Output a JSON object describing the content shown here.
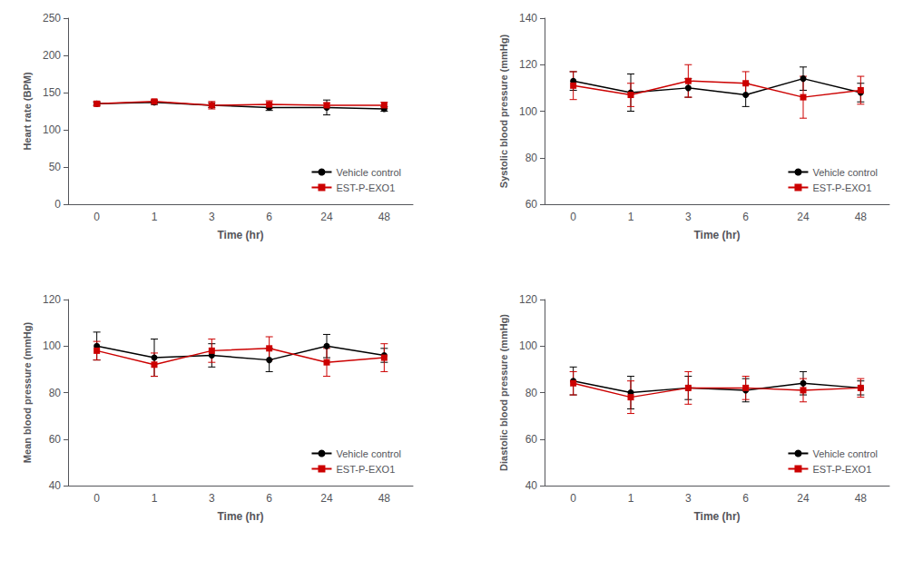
{
  "chart_data": [
    {
      "type": "line",
      "xlabel": "Time (hr)",
      "ylabel": "Heart rate (BPM)",
      "categories": [
        "0",
        "1",
        "3",
        "6",
        "24",
        "48"
      ],
      "series": [
        {
          "name": "Vehicle control",
          "color": "#000000",
          "marker": "circle",
          "values": [
            135,
            137,
            133,
            130,
            130,
            128
          ],
          "errors": [
            2,
            3,
            3,
            4,
            10,
            3
          ]
        },
        {
          "name": "EST-P-EXO1",
          "color": "#cc0000",
          "marker": "square",
          "values": [
            135,
            138,
            133,
            134,
            133,
            133
          ],
          "errors": [
            3,
            2,
            5,
            5,
            3,
            4
          ]
        }
      ],
      "ylim": [
        0,
        250
      ],
      "yticks": [
        0,
        50,
        100,
        150,
        200,
        250
      ],
      "grid": false,
      "legend": "lower right"
    },
    {
      "type": "line",
      "xlabel": "Time (hr)",
      "ylabel": "Systolic blood pressure (mmHg)",
      "categories": [
        "0",
        "1",
        "3",
        "6",
        "24",
        "48"
      ],
      "series": [
        {
          "name": "Vehicle control",
          "color": "#000000",
          "marker": "circle",
          "values": [
            113,
            108,
            110,
            107,
            114,
            108
          ],
          "errors": [
            4,
            8,
            4,
            5,
            5,
            4
          ]
        },
        {
          "name": "EST-P-EXO1",
          "color": "#cc0000",
          "marker": "square",
          "values": [
            111,
            107,
            113,
            112,
            106,
            109
          ],
          "errors": [
            6,
            5,
            7,
            5,
            9,
            6
          ]
        }
      ],
      "ylim": [
        60,
        140
      ],
      "yticks": [
        60,
        80,
        100,
        120,
        140
      ],
      "grid": false,
      "legend": "lower right"
    },
    {
      "type": "line",
      "xlabel": "Time (hr)",
      "ylabel": "Mean blood pressure (mmHg)",
      "categories": [
        "0",
        "1",
        "3",
        "6",
        "24",
        "48"
      ],
      "series": [
        {
          "name": "Vehicle control",
          "color": "#000000",
          "marker": "circle",
          "values": [
            100,
            95,
            96,
            94,
            100,
            96
          ],
          "errors": [
            6,
            8,
            5,
            5,
            5,
            3
          ]
        },
        {
          "name": "EST-P-EXO1",
          "color": "#cc0000",
          "marker": "square",
          "values": [
            98,
            92,
            98,
            99,
            93,
            95
          ],
          "errors": [
            4,
            5,
            5,
            5,
            6,
            6
          ]
        }
      ],
      "ylim": [
        40,
        120
      ],
      "yticks": [
        40,
        60,
        80,
        100,
        120
      ],
      "grid": false,
      "legend": "lower right"
    },
    {
      "type": "line",
      "xlabel": "Time (hr)",
      "ylabel": "Diastolic blood pressure (mmHg)",
      "categories": [
        "0",
        "1",
        "3",
        "6",
        "24",
        "48"
      ],
      "series": [
        {
          "name": "Vehicle control",
          "color": "#000000",
          "marker": "circle",
          "values": [
            85,
            80,
            82,
            81,
            84,
            82
          ],
          "errors": [
            6,
            7,
            5,
            5,
            5,
            3
          ]
        },
        {
          "name": "EST-P-EXO1",
          "color": "#cc0000",
          "marker": "square",
          "values": [
            84,
            78,
            82,
            82,
            81,
            82
          ],
          "errors": [
            5,
            7,
            7,
            5,
            5,
            4
          ]
        }
      ],
      "ylim": [
        40,
        120
      ],
      "yticks": [
        40,
        60,
        80,
        100,
        120
      ],
      "grid": false,
      "legend": "lower right"
    }
  ]
}
